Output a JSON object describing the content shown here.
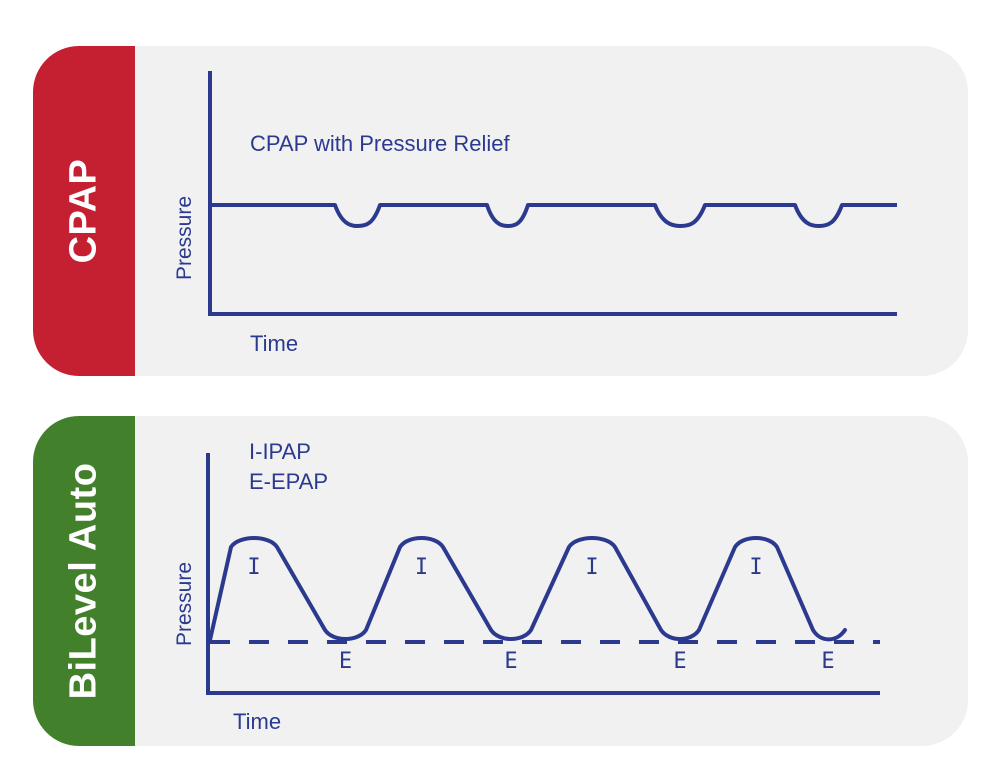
{
  "colors": {
    "cpap_tab": "#c42032",
    "bilevel_tab": "#43802b",
    "card_bg": "#f1f1f1",
    "ink": "#2b3a8e",
    "tab_text": "#ffffff"
  },
  "panels": {
    "cpap": {
      "tab_label": "CPAP",
      "title": "CPAP with Pressure Relief",
      "y_axis_label": "Pressure",
      "x_axis_label": "Time",
      "relief_dips": 4
    },
    "bilevel": {
      "tab_label": "BiLevel Auto",
      "legend": [
        "I-IPAP",
        "E-EPAP"
      ],
      "y_axis_label": "Pressure",
      "x_axis_label": "Time",
      "peak_label": "I",
      "trough_label": "E",
      "cycles": 4
    }
  }
}
